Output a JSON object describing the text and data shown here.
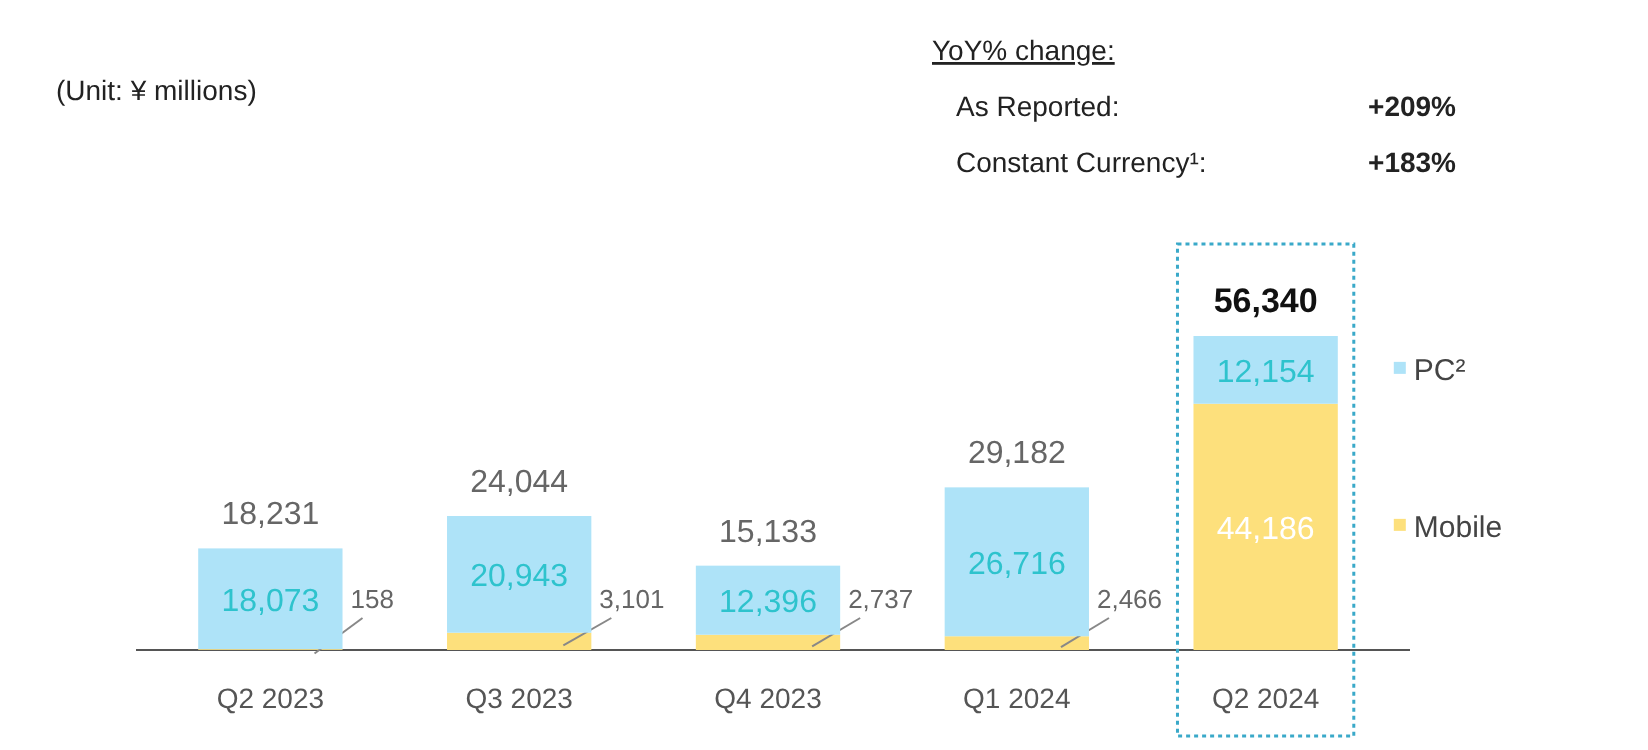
{
  "chart_data": {
    "type": "bar",
    "stacked": true,
    "categories": [
      "Q2 2023",
      "Q3 2023",
      "Q4 2023",
      "Q1 2024",
      "Q2 2024"
    ],
    "series": [
      {
        "name": "Mobile",
        "color": "#fde07c",
        "values": [
          158,
          3101,
          2737,
          2466,
          44186
        ],
        "value_labels": [
          "158",
          "3,101",
          "2,737",
          "2,466",
          "44,186"
        ]
      },
      {
        "name": "PC²",
        "color": "#aee3f8",
        "values": [
          18073,
          20943,
          12396,
          26716,
          12154
        ],
        "value_labels": [
          "18,073",
          "20,943",
          "12,396",
          "26,716",
          "12,154"
        ]
      }
    ],
    "totals": [
      "18,231",
      "24,044",
      "15,133",
      "29,182",
      "56,340"
    ],
    "legend": "right",
    "annotations": [
      "(Unit: ¥ millions)",
      "YoY% change:",
      "As Reported:",
      "+209%",
      "Constant Currency¹:",
      "+183%"
    ]
  }
}
